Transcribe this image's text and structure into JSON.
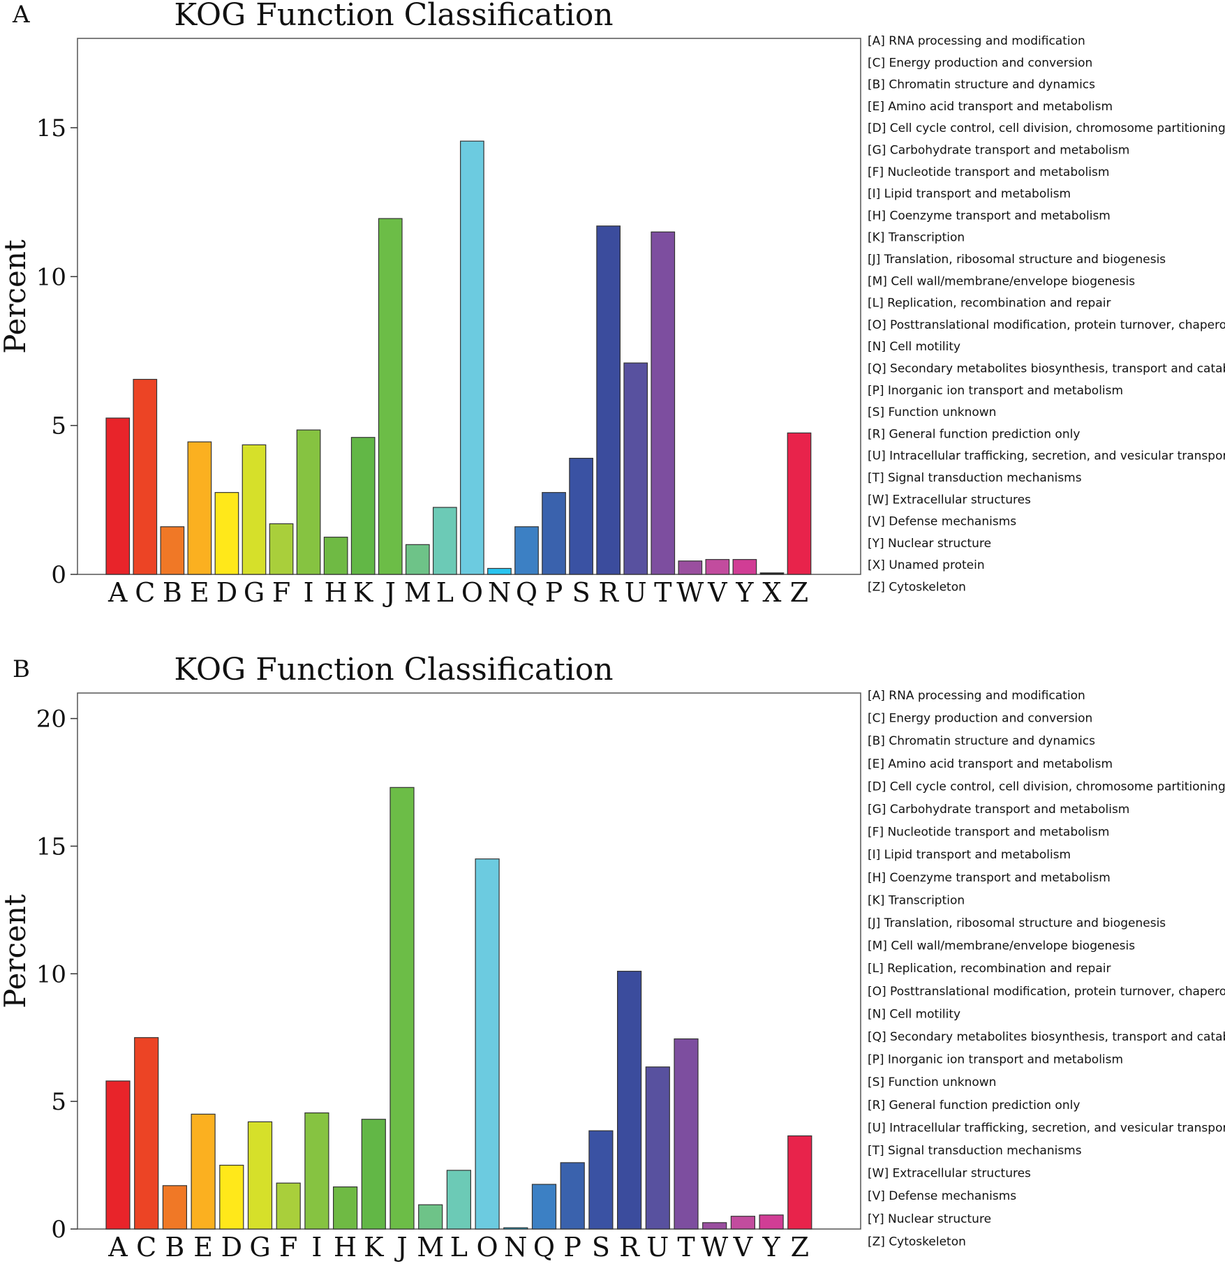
{
  "colors": {
    "A": "#e8242a",
    "C": "#ec4425",
    "B": "#f07826",
    "E": "#fbb020",
    "D": "#ffe81a",
    "G": "#d6e02a",
    "F": "#a9cf3b",
    "I": "#86c341",
    "H": "#6fba44",
    "K": "#62b746",
    "J": "#6cbd47",
    "M": "#6ec388",
    "L": "#6ccab6",
    "O": "#6ccbe0",
    "N": "#29c5f0",
    "Q": "#3c80c4",
    "P": "#3a62ad",
    "S": "#3a52a3",
    "R": "#3b4c9d",
    "U": "#58519f",
    "T": "#7d4e9f",
    "W": "#9a4f9f",
    "V": "#c24c9e",
    "Y": "#d13d95",
    "X": "#1a1a1a",
    "Z": "#e8234b"
  },
  "chart_data": [
    {
      "type": "bar",
      "panel_label": "A",
      "title": "KOG Function Classification",
      "xlabel": "",
      "ylabel": "Percent",
      "ylim": [
        0,
        18
      ],
      "yticks": [
        0,
        5,
        10,
        15
      ],
      "grid": false,
      "legend_position": "right",
      "categories": [
        "A",
        "C",
        "B",
        "E",
        "D",
        "G",
        "F",
        "I",
        "H",
        "K",
        "J",
        "M",
        "L",
        "O",
        "N",
        "Q",
        "P",
        "S",
        "R",
        "U",
        "T",
        "W",
        "V",
        "Y",
        "X",
        "Z"
      ],
      "values": [
        5.25,
        6.55,
        1.6,
        4.45,
        2.75,
        4.35,
        1.7,
        4.85,
        1.25,
        4.6,
        11.95,
        1.0,
        2.25,
        14.55,
        0.2,
        1.6,
        2.75,
        3.9,
        11.7,
        7.1,
        11.5,
        0.45,
        0.5,
        0.5,
        0.05,
        4.75
      ],
      "legend": [
        "[A] RNA processing and modification",
        "[C] Energy production and conversion",
        "[B] Chromatin structure and dynamics",
        "[E] Amino acid transport and metabolism",
        "[D] Cell cycle control, cell division, chromosome partitioning",
        "[G] Carbohydrate transport and metabolism",
        "[F] Nucleotide transport and metabolism",
        "[I] Lipid transport and metabolism",
        "[H] Coenzyme transport and metabolism",
        "[K] Transcription",
        "[J] Translation, ribosomal structure and biogenesis",
        "[M] Cell wall/membrane/envelope biogenesis",
        "[L] Replication, recombination and repair",
        "[O] Posttranslational modification, protein turnover, chaperones",
        "[N] Cell motility",
        "[Q] Secondary metabolites biosynthesis, transport and catabolism",
        "[P] Inorganic ion transport and metabolism",
        "[S] Function unknown",
        "[R] General function prediction only",
        "[U] Intracellular trafficking, secretion, and vesicular transport",
        "[T] Signal transduction mechanisms",
        "[W] Extracellular structures",
        "[V] Defense mechanisms",
        "[Y] Nuclear structure",
        "[X] Unamed protein",
        "[Z] Cytoskeleton"
      ]
    },
    {
      "type": "bar",
      "panel_label": "B",
      "title": "KOG Function Classification",
      "xlabel": "",
      "ylabel": "Percent",
      "ylim": [
        0,
        21
      ],
      "yticks": [
        0,
        5,
        10,
        15,
        20
      ],
      "grid": false,
      "legend_position": "right",
      "categories": [
        "A",
        "C",
        "B",
        "E",
        "D",
        "G",
        "F",
        "I",
        "H",
        "K",
        "J",
        "M",
        "L",
        "O",
        "N",
        "Q",
        "P",
        "S",
        "R",
        "U",
        "T",
        "W",
        "V",
        "Y",
        "Z"
      ],
      "values": [
        5.8,
        7.5,
        1.7,
        4.5,
        2.5,
        4.2,
        1.8,
        4.55,
        1.65,
        4.3,
        17.3,
        0.95,
        2.3,
        14.5,
        0.05,
        1.75,
        2.6,
        3.85,
        10.1,
        6.35,
        7.45,
        0.25,
        0.5,
        0.55,
        3.65
      ],
      "legend": [
        "[A] RNA processing and modification",
        "[C] Energy production and conversion",
        "[B] Chromatin structure and dynamics",
        "[E] Amino acid transport and metabolism",
        "[D] Cell cycle control, cell division, chromosome partitioning",
        "[G] Carbohydrate transport and metabolism",
        "[F] Nucleotide transport and metabolism",
        "[I] Lipid transport and metabolism",
        "[H] Coenzyme transport and metabolism",
        "[K] Transcription",
        "[J] Translation, ribosomal structure and biogenesis",
        "[M] Cell wall/membrane/envelope biogenesis",
        "[L] Replication, recombination and repair",
        "[O] Posttranslational modification, protein turnover, chaperones",
        "[N] Cell motility",
        "[Q] Secondary metabolites biosynthesis, transport and catabolism",
        "[P] Inorganic ion transport and metabolism",
        "[S] Function unknown",
        "[R] General function prediction only",
        "[U] Intracellular trafficking, secretion, and vesicular transport",
        "[T] Signal transduction mechanisms",
        "[W] Extracellular structures",
        "[V] Defense mechanisms",
        "[Y] Nuclear structure",
        "[Z] Cytoskeleton"
      ]
    }
  ]
}
